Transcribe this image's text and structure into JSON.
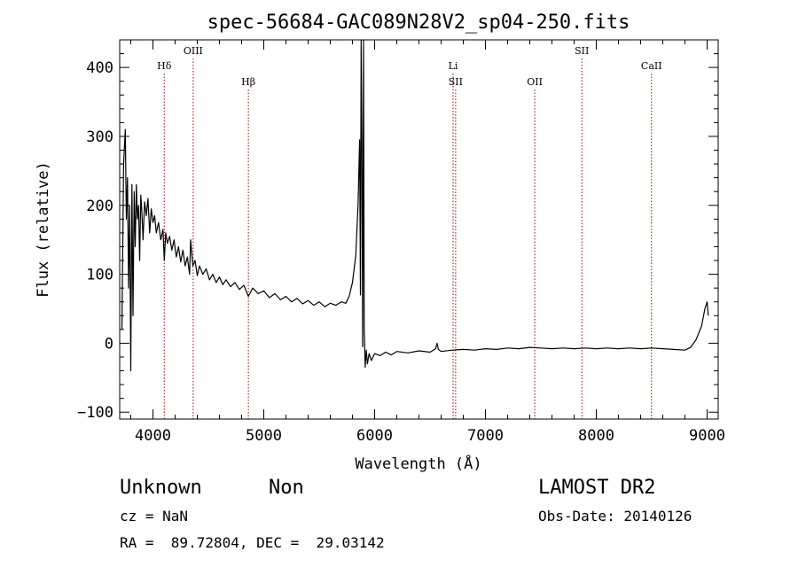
{
  "chart_data": {
    "type": "line",
    "title": "spec-56684-GAC089N28V2_sp04-250.fits",
    "xlabel": "Wavelength (Å)",
    "ylabel": "Flux (relative)",
    "xlim": [
      3700,
      9100
    ],
    "ylim": [
      -110,
      440
    ],
    "x_ticks": [
      4000,
      5000,
      6000,
      7000,
      8000,
      9000
    ],
    "y_ticks": [
      -100,
      0,
      100,
      200,
      300,
      400
    ],
    "x_tick_labels": [
      "4000",
      "5000",
      "6000",
      "7000",
      "8000",
      "9000"
    ],
    "y_tick_labels": [
      "−100",
      "0",
      "100",
      "200",
      "300",
      "400"
    ],
    "series": [
      {
        "color": "#000000",
        "points": [
          [
            3720,
            20
          ],
          [
            3735,
            260
          ],
          [
            3750,
            310
          ],
          [
            3760,
            180
          ],
          [
            3770,
            240
          ],
          [
            3780,
            80
          ],
          [
            3790,
            200
          ],
          [
            3800,
            -40
          ],
          [
            3810,
            230
          ],
          [
            3820,
            40
          ],
          [
            3830,
            220
          ],
          [
            3840,
            140
          ],
          [
            3850,
            230
          ],
          [
            3860,
            180
          ],
          [
            3870,
            200
          ],
          [
            3880,
            120
          ],
          [
            3890,
            215
          ],
          [
            3900,
            190
          ],
          [
            3910,
            150
          ],
          [
            3925,
            205
          ],
          [
            3940,
            185
          ],
          [
            3955,
            210
          ],
          [
            3970,
            160
          ],
          [
            3985,
            195
          ],
          [
            4000,
            175
          ],
          [
            4015,
            185
          ],
          [
            4030,
            160
          ],
          [
            4050,
            175
          ],
          [
            4070,
            150
          ],
          [
            4090,
            165
          ],
          [
            4102,
            120
          ],
          [
            4115,
            160
          ],
          [
            4130,
            145
          ],
          [
            4150,
            155
          ],
          [
            4170,
            135
          ],
          [
            4190,
            150
          ],
          [
            4210,
            125
          ],
          [
            4230,
            140
          ],
          [
            4250,
            118
          ],
          [
            4270,
            135
          ],
          [
            4290,
            112
          ],
          [
            4310,
            125
          ],
          [
            4330,
            100
          ],
          [
            4340,
            150
          ],
          [
            4360,
            112
          ],
          [
            4380,
            120
          ],
          [
            4400,
            98
          ],
          [
            4420,
            112
          ],
          [
            4450,
            100
          ],
          [
            4480,
            108
          ],
          [
            4510,
            92
          ],
          [
            4540,
            100
          ],
          [
            4570,
            88
          ],
          [
            4600,
            96
          ],
          [
            4630,
            85
          ],
          [
            4660,
            92
          ],
          [
            4700,
            82
          ],
          [
            4740,
            88
          ],
          [
            4780,
            78
          ],
          [
            4820,
            84
          ],
          [
            4861,
            68
          ],
          [
            4900,
            80
          ],
          [
            4950,
            72
          ],
          [
            5000,
            76
          ],
          [
            5050,
            66
          ],
          [
            5100,
            72
          ],
          [
            5150,
            63
          ],
          [
            5200,
            68
          ],
          [
            5250,
            60
          ],
          [
            5300,
            65
          ],
          [
            5350,
            57
          ],
          [
            5400,
            62
          ],
          [
            5450,
            55
          ],
          [
            5500,
            60
          ],
          [
            5550,
            53
          ],
          [
            5600,
            58
          ],
          [
            5650,
            55
          ],
          [
            5700,
            60
          ],
          [
            5740,
            58
          ],
          [
            5770,
            68
          ],
          [
            5800,
            88
          ],
          [
            5830,
            128
          ],
          [
            5850,
            200
          ],
          [
            5865,
            295
          ],
          [
            5872,
            70
          ],
          [
            5878,
            440
          ],
          [
            5885,
            300
          ],
          [
            5892,
            -5
          ],
          [
            5900,
            440
          ],
          [
            5906,
            20
          ],
          [
            5915,
            -35
          ],
          [
            5925,
            -10
          ],
          [
            5935,
            -30
          ],
          [
            5950,
            -15
          ],
          [
            5970,
            -25
          ],
          [
            6000,
            -15
          ],
          [
            6050,
            -18
          ],
          [
            6100,
            -13
          ],
          [
            6150,
            -17
          ],
          [
            6200,
            -12
          ],
          [
            6300,
            -14
          ],
          [
            6400,
            -11
          ],
          [
            6500,
            -13
          ],
          [
            6550,
            -8
          ],
          [
            6563,
            0
          ],
          [
            6575,
            -9
          ],
          [
            6600,
            -12
          ],
          [
            6700,
            -10
          ],
          [
            6800,
            -9
          ],
          [
            6900,
            -10
          ],
          [
            7000,
            -8
          ],
          [
            7100,
            -9
          ],
          [
            7200,
            -7
          ],
          [
            7300,
            -8
          ],
          [
            7400,
            -6
          ],
          [
            7500,
            -7
          ],
          [
            7600,
            -8
          ],
          [
            7700,
            -7
          ],
          [
            7800,
            -8
          ],
          [
            7900,
            -7
          ],
          [
            8000,
            -8
          ],
          [
            8100,
            -7
          ],
          [
            8200,
            -8
          ],
          [
            8300,
            -7
          ],
          [
            8400,
            -8
          ],
          [
            8500,
            -7
          ],
          [
            8600,
            -8
          ],
          [
            8700,
            -9
          ],
          [
            8800,
            -10
          ],
          [
            8850,
            -6
          ],
          [
            8900,
            5
          ],
          [
            8950,
            25
          ],
          [
            8980,
            50
          ],
          [
            9000,
            60
          ],
          [
            9010,
            40
          ]
        ]
      }
    ],
    "annotations": [
      {
        "label": "Hδ",
        "x": 4102,
        "row": 2
      },
      {
        "label": "OIII",
        "x": 4363,
        "row": 1
      },
      {
        "label": "Hβ",
        "x": 4861,
        "row": 3
      },
      {
        "label": "Li",
        "x": 6708,
        "row": 2
      },
      {
        "label": "SII",
        "x": 6731,
        "row": 3
      },
      {
        "label": "OII",
        "x": 7445,
        "row": 3
      },
      {
        "label": "SII",
        "x": 7870,
        "row": 1
      },
      {
        "label": "CaII",
        "x": 8498,
        "row": 2
      }
    ],
    "grid": false,
    "legend": "none"
  },
  "info": {
    "class_label": "Unknown",
    "subclass_label": "Non",
    "cz_text": "cz = NaN",
    "coords_text": "RA =  89.72804, DEC =  29.03142",
    "survey_label": "LAMOST DR2",
    "obs_date_text": "Obs-Date: 20140126"
  },
  "colors": {
    "line_marker": "#aa0000",
    "spectrum": "#000000"
  }
}
